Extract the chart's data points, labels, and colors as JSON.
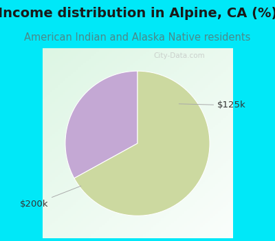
{
  "title": "Income distribution in Alpine, CA (%)",
  "subtitle": "American Indian and Alaska Native residents",
  "title_fontsize": 14,
  "subtitle_fontsize": 10.5,
  "title_color": "#1a1a1a",
  "subtitle_color": "#4a8a8a",
  "bg_color": "#00e8f8",
  "chart_bg_top_left": "#d8ede5",
  "chart_bg_center": "#ffffff",
  "slices": [
    {
      "label": "$125k",
      "value": 33,
      "color": "#c4a8d4"
    },
    {
      "label": "$200k",
      "value": 67,
      "color": "#ccd9a0"
    }
  ],
  "label_fontsize": 9.5,
  "label_color": "#333333",
  "startangle": 90,
  "watermark": "City-Data.com"
}
